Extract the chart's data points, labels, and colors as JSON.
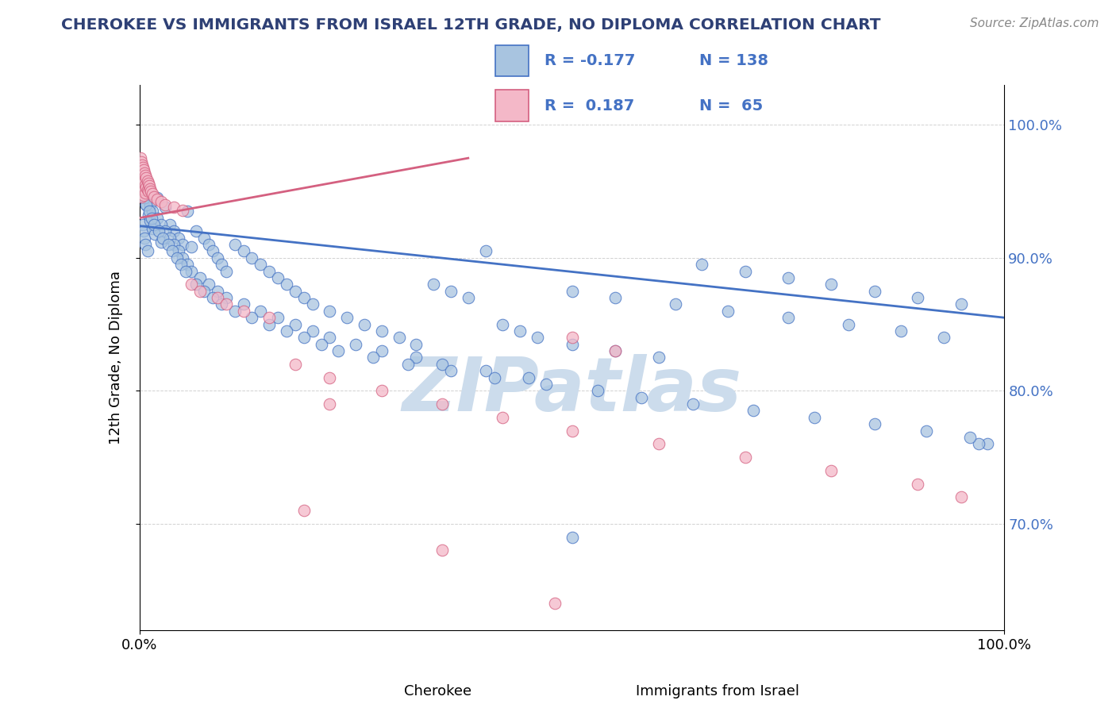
{
  "title": "CHEROKEE VS IMMIGRANTS FROM ISRAEL 12TH GRADE, NO DIPLOMA CORRELATION CHART",
  "source_text": "Source: ZipAtlas.com",
  "ylabel": "12th Grade, No Diploma",
  "legend_r_blue": "R = -0.177",
  "legend_r_pink": "R =  0.187",
  "legend_n_blue": "N = 138",
  "legend_n_pink": "N =  65",
  "legend_label_blue": "Cherokee",
  "legend_label_pink": "Immigrants from Israel",
  "blue_color": "#a8c4e0",
  "blue_line_color": "#4472c4",
  "pink_color": "#f4b8c8",
  "pink_line_color": "#d46080",
  "title_color": "#2e4075",
  "watermark_text": "ZIPatlas",
  "watermark_color": "#ccdcec",
  "grid_color": "#cccccc",
  "background_color": "#ffffff",
  "right_tick_color": "#4472c4",
  "xlim": [
    0.0,
    1.0
  ],
  "ylim": [
    0.62,
    1.03
  ],
  "blue_scatter_x": [
    0.004,
    0.005,
    0.006,
    0.007,
    0.008,
    0.009,
    0.01,
    0.012,
    0.015,
    0.018,
    0.02,
    0.025,
    0.03,
    0.035,
    0.04,
    0.045,
    0.05,
    0.055,
    0.06,
    0.065,
    0.075,
    0.08,
    0.085,
    0.09,
    0.095,
    0.1,
    0.11,
    0.12,
    0.13,
    0.14,
    0.15,
    0.16,
    0.17,
    0.18,
    0.19,
    0.2,
    0.22,
    0.24,
    0.26,
    0.28,
    0.3,
    0.32,
    0.34,
    0.36,
    0.38,
    0.4,
    0.42,
    0.44,
    0.46,
    0.5,
    0.55,
    0.6,
    0.65,
    0.7,
    0.75,
    0.8,
    0.85,
    0.9,
    0.95,
    0.98,
    0.003,
    0.005,
    0.007,
    0.009,
    0.012,
    0.015,
    0.02,
    0.025,
    0.03,
    0.035,
    0.04,
    0.045,
    0.05,
    0.055,
    0.06,
    0.07,
    0.08,
    0.09,
    0.1,
    0.12,
    0.14,
    0.16,
    0.18,
    0.2,
    0.22,
    0.25,
    0.28,
    0.32,
    0.35,
    0.4,
    0.45,
    0.5,
    0.55,
    0.62,
    0.68,
    0.75,
    0.82,
    0.88,
    0.93,
    0.97,
    0.004,
    0.006,
    0.008,
    0.011,
    0.014,
    0.017,
    0.022,
    0.027,
    0.033,
    0.038,
    0.043,
    0.048,
    0.053,
    0.065,
    0.075,
    0.085,
    0.095,
    0.11,
    0.13,
    0.15,
    0.17,
    0.19,
    0.21,
    0.23,
    0.27,
    0.31,
    0.36,
    0.41,
    0.47,
    0.53,
    0.58,
    0.64,
    0.71,
    0.78,
    0.85,
    0.91,
    0.96,
    0.5
  ],
  "blue_scatter_y": [
    0.925,
    0.92,
    0.915,
    0.91,
    0.94,
    0.905,
    0.932,
    0.928,
    0.922,
    0.918,
    0.945,
    0.912,
    0.938,
    0.925,
    0.92,
    0.915,
    0.91,
    0.935,
    0.908,
    0.92,
    0.915,
    0.91,
    0.905,
    0.9,
    0.895,
    0.89,
    0.91,
    0.905,
    0.9,
    0.895,
    0.89,
    0.885,
    0.88,
    0.875,
    0.87,
    0.865,
    0.86,
    0.855,
    0.85,
    0.845,
    0.84,
    0.835,
    0.88,
    0.875,
    0.87,
    0.905,
    0.85,
    0.845,
    0.84,
    0.835,
    0.83,
    0.825,
    0.895,
    0.89,
    0.885,
    0.88,
    0.875,
    0.87,
    0.865,
    0.76,
    0.96,
    0.955,
    0.95,
    0.945,
    0.94,
    0.935,
    0.93,
    0.925,
    0.92,
    0.915,
    0.91,
    0.905,
    0.9,
    0.895,
    0.89,
    0.885,
    0.88,
    0.875,
    0.87,
    0.865,
    0.86,
    0.855,
    0.85,
    0.845,
    0.84,
    0.835,
    0.83,
    0.825,
    0.82,
    0.815,
    0.81,
    0.875,
    0.87,
    0.865,
    0.86,
    0.855,
    0.85,
    0.845,
    0.84,
    0.76,
    0.95,
    0.945,
    0.94,
    0.935,
    0.93,
    0.925,
    0.92,
    0.915,
    0.91,
    0.905,
    0.9,
    0.895,
    0.89,
    0.88,
    0.875,
    0.87,
    0.865,
    0.86,
    0.855,
    0.85,
    0.845,
    0.84,
    0.835,
    0.83,
    0.825,
    0.82,
    0.815,
    0.81,
    0.805,
    0.8,
    0.795,
    0.79,
    0.785,
    0.78,
    0.775,
    0.77,
    0.765,
    0.69
  ],
  "pink_scatter_x": [
    0.001,
    0.001,
    0.001,
    0.001,
    0.002,
    0.002,
    0.002,
    0.002,
    0.002,
    0.003,
    0.003,
    0.003,
    0.003,
    0.004,
    0.004,
    0.004,
    0.005,
    0.005,
    0.005,
    0.005,
    0.006,
    0.006,
    0.006,
    0.007,
    0.007,
    0.007,
    0.008,
    0.008,
    0.009,
    0.009,
    0.01,
    0.01,
    0.011,
    0.012,
    0.013,
    0.015,
    0.017,
    0.02,
    0.025,
    0.03,
    0.04,
    0.05,
    0.06,
    0.07,
    0.09,
    0.1,
    0.12,
    0.15,
    0.18,
    0.22,
    0.28,
    0.35,
    0.42,
    0.5,
    0.6,
    0.7,
    0.8,
    0.9,
    0.95,
    0.5,
    0.55,
    0.22,
    0.19,
    0.35,
    0.48
  ],
  "pink_scatter_y": [
    0.975,
    0.968,
    0.962,
    0.958,
    0.972,
    0.965,
    0.958,
    0.952,
    0.946,
    0.97,
    0.963,
    0.956,
    0.95,
    0.968,
    0.961,
    0.955,
    0.966,
    0.959,
    0.953,
    0.947,
    0.964,
    0.957,
    0.951,
    0.962,
    0.955,
    0.949,
    0.96,
    0.953,
    0.958,
    0.951,
    0.956,
    0.95,
    0.954,
    0.952,
    0.95,
    0.948,
    0.946,
    0.944,
    0.942,
    0.94,
    0.938,
    0.936,
    0.88,
    0.875,
    0.87,
    0.865,
    0.86,
    0.855,
    0.82,
    0.81,
    0.8,
    0.79,
    0.78,
    0.77,
    0.76,
    0.75,
    0.74,
    0.73,
    0.72,
    0.84,
    0.83,
    0.79,
    0.71,
    0.68,
    0.64
  ],
  "blue_trend_x": [
    0.0,
    1.0
  ],
  "blue_trend_y": [
    0.924,
    0.855
  ],
  "pink_trend_x": [
    0.0,
    0.38
  ],
  "pink_trend_y": [
    0.93,
    0.975
  ]
}
